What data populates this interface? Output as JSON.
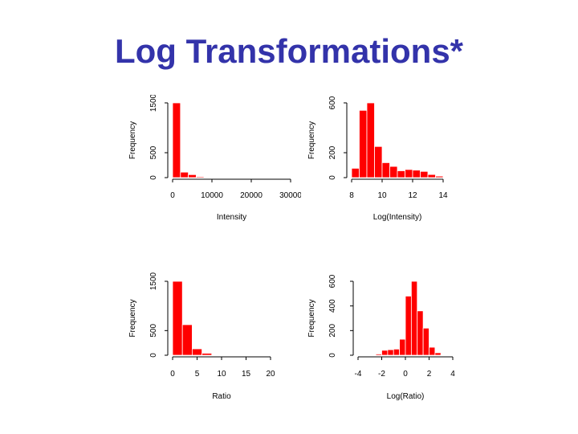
{
  "slide": {
    "title": "Log Transformations*"
  },
  "chart_data": [
    {
      "type": "bar",
      "xlabel": "Intensity",
      "ylabel": "Frequency",
      "xlim": [
        0,
        30000
      ],
      "ylim": [
        0,
        1500
      ],
      "xticks": [
        0,
        10000,
        20000,
        30000
      ],
      "xtick_labels": [
        "0",
        "10000",
        "20000",
        "30000"
      ],
      "yticks": [
        0,
        500,
        1500
      ],
      "ytick_labels": [
        "0",
        "500",
        "1500"
      ],
      "bin_edges": [
        0,
        2000,
        4000,
        6000,
        8000,
        10000,
        12000,
        14000,
        16000,
        18000,
        20000,
        22000,
        24000,
        26000,
        28000,
        30000,
        32000,
        34000
      ],
      "values": [
        1500,
        110,
        60,
        20,
        8,
        3,
        2,
        1,
        1,
        0,
        0,
        0,
        0,
        0,
        0,
        0,
        1
      ],
      "color": "#ff0000"
    },
    {
      "type": "bar",
      "xlabel": "Log(Intensity)",
      "ylabel": "Frequency",
      "xlim": [
        8,
        14
      ],
      "ylim": [
        0,
        600
      ],
      "xticks": [
        8,
        10,
        12,
        14
      ],
      "xtick_labels": [
        "8",
        "10",
        "12",
        "14"
      ],
      "yticks": [
        0,
        200,
        600
      ],
      "ytick_labels": [
        "0",
        "200",
        "600"
      ],
      "bin_edges": [
        8,
        8.5,
        9,
        9.5,
        10,
        10.5,
        11,
        11.5,
        12,
        12.5,
        13,
        13.5,
        14
      ],
      "values": [
        75,
        540,
        600,
        250,
        120,
        90,
        55,
        65,
        60,
        50,
        25,
        12
      ],
      "color": "#ff0000"
    },
    {
      "type": "bar",
      "xlabel": "Ratio",
      "ylabel": "Frequency",
      "xlim": [
        0,
        20
      ],
      "ylim": [
        0,
        1500
      ],
      "xticks": [
        0,
        5,
        10,
        15,
        20
      ],
      "xtick_labels": [
        "0",
        "5",
        "10",
        "15",
        "20"
      ],
      "yticks": [
        0,
        500,
        1500
      ],
      "ytick_labels": [
        "0",
        "500",
        "1500"
      ],
      "bin_edges": [
        0,
        2,
        4,
        6,
        8
      ],
      "values": [
        1500,
        620,
        130,
        40
      ],
      "color": "#ff0000"
    },
    {
      "type": "bar",
      "xlabel": "Log(Ratio)",
      "ylabel": "Frequency",
      "xlim": [
        -4,
        4
      ],
      "ylim": [
        0,
        600
      ],
      "xticks": [
        -4,
        -2,
        0,
        2,
        4
      ],
      "xtick_labels": [
        "-4",
        "-2",
        "0",
        "2",
        "4"
      ],
      "yticks": [
        0,
        200,
        400,
        600
      ],
      "ytick_labels": [
        "0",
        "200",
        "400",
        "600"
      ],
      "bin_edges": [
        -2.5,
        -2,
        -1.5,
        -1,
        -0.5,
        0,
        0.5,
        1,
        1.5,
        2,
        2.5,
        3,
        3.5
      ],
      "values": [
        10,
        40,
        45,
        50,
        130,
        480,
        600,
        360,
        220,
        65,
        20,
        5
      ],
      "color": "#ff0000"
    }
  ]
}
